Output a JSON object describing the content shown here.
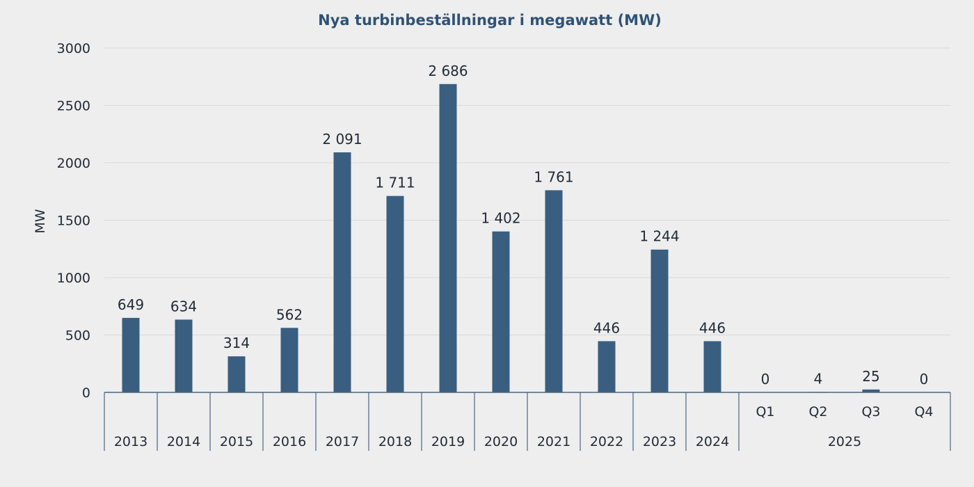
{
  "chart_data": {
    "type": "bar",
    "title": "Nya turbinbeställningar i megawatt (MW)",
    "ylabel": "MW",
    "xlabel": "",
    "ylim": [
      0,
      3000
    ],
    "yticks": [
      "0",
      "500",
      "1000",
      "1500",
      "2000",
      "2500",
      "3000"
    ],
    "ytick_values": [
      0,
      500,
      1000,
      1500,
      2000,
      2500,
      3000
    ],
    "grid": true,
    "categories": [
      "2013",
      "2014",
      "2015",
      "2016",
      "2017",
      "2018",
      "2019",
      "2020",
      "2021",
      "2022",
      "2023",
      "2024",
      "Q1",
      "Q2",
      "Q3",
      "Q4"
    ],
    "group_labels": [
      {
        "label": "2025",
        "members": [
          "Q1",
          "Q2",
          "Q3",
          "Q4"
        ]
      }
    ],
    "values": [
      649,
      634,
      314,
      562,
      2091,
      1711,
      2686,
      1402,
      1761,
      446,
      1244,
      446,
      0,
      4,
      25,
      0
    ],
    "data_labels": [
      "649",
      "634",
      "314",
      "562",
      "2 091",
      "1 711",
      "2 686",
      "1 402",
      "1 761",
      "446",
      "1 244",
      "446",
      "0",
      "4",
      "25",
      "0"
    ],
    "colors": {
      "bar": "#3a5e80",
      "title": "#2f5376",
      "grid": "#d9d9d9",
      "axis": "#4a6580",
      "background": "#eeeeee"
    }
  }
}
